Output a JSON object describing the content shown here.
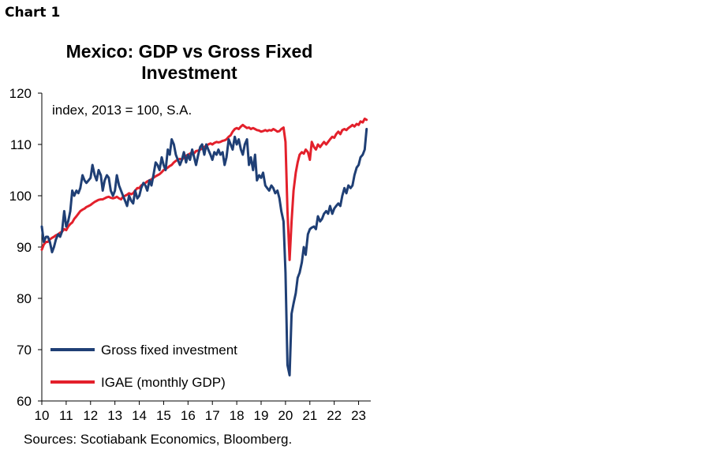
{
  "chart_label": "Chart 1",
  "source": "Sources: Scotiabank Economics, Bloomberg.",
  "chart_data": {
    "type": "line",
    "title": "Mexico: GDP vs Gross Fixed Investment",
    "title_lines": [
      "Mexico: GDP vs Gross Fixed",
      "Investment"
    ],
    "annotation": "index, 2013 = 100, S.A.",
    "xlabel": "",
    "ylabel": "",
    "ylim": [
      60,
      120
    ],
    "yticks": [
      60,
      70,
      80,
      90,
      100,
      110,
      120
    ],
    "xlim": [
      2010,
      2023.5
    ],
    "xticks": [
      2010,
      2011,
      2012,
      2013,
      2014,
      2015,
      2016,
      2017,
      2018,
      2019,
      2020,
      2021,
      2022,
      2023
    ],
    "xtick_labels": [
      "10",
      "11",
      "12",
      "13",
      "14",
      "15",
      "16",
      "17",
      "18",
      "19",
      "20",
      "21",
      "22",
      "23"
    ],
    "grid": false,
    "legend": "bottom-left",
    "series": [
      {
        "name": "Gross fixed investment",
        "color": "#1f3f75",
        "x": [
          2010.0,
          2010.08,
          2010.17,
          2010.25,
          2010.33,
          2010.42,
          2010.5,
          2010.58,
          2010.67,
          2010.75,
          2010.83,
          2010.92,
          2011.0,
          2011.08,
          2011.17,
          2011.25,
          2011.33,
          2011.42,
          2011.5,
          2011.58,
          2011.67,
          2011.75,
          2011.83,
          2011.92,
          2012.0,
          2012.08,
          2012.17,
          2012.25,
          2012.33,
          2012.42,
          2012.5,
          2012.58,
          2012.67,
          2012.75,
          2012.83,
          2012.92,
          2013.0,
          2013.08,
          2013.17,
          2013.25,
          2013.33,
          2013.42,
          2013.5,
          2013.58,
          2013.67,
          2013.75,
          2013.83,
          2013.92,
          2014.0,
          2014.08,
          2014.17,
          2014.25,
          2014.33,
          2014.42,
          2014.5,
          2014.58,
          2014.67,
          2014.75,
          2014.83,
          2014.92,
          2015.0,
          2015.08,
          2015.17,
          2015.25,
          2015.33,
          2015.42,
          2015.5,
          2015.58,
          2015.67,
          2015.75,
          2015.83,
          2015.92,
          2016.0,
          2016.08,
          2016.17,
          2016.25,
          2016.33,
          2016.42,
          2016.5,
          2016.58,
          2016.67,
          2016.75,
          2016.83,
          2016.92,
          2017.0,
          2017.08,
          2017.17,
          2017.25,
          2017.33,
          2017.42,
          2017.5,
          2017.58,
          2017.67,
          2017.75,
          2017.83,
          2017.92,
          2018.0,
          2018.08,
          2018.17,
          2018.25,
          2018.33,
          2018.42,
          2018.5,
          2018.58,
          2018.67,
          2018.75,
          2018.83,
          2018.92,
          2019.0,
          2019.08,
          2019.17,
          2019.25,
          2019.33,
          2019.42,
          2019.5,
          2019.58,
          2019.67,
          2019.75,
          2019.83,
          2019.92,
          2020.0,
          2020.08,
          2020.17,
          2020.25,
          2020.33,
          2020.42,
          2020.5,
          2020.58,
          2020.67,
          2020.75,
          2020.83,
          2020.92,
          2021.0,
          2021.08,
          2021.17,
          2021.25,
          2021.33,
          2021.42,
          2021.5,
          2021.58,
          2021.67,
          2021.75,
          2021.83,
          2021.92,
          2022.0,
          2022.08,
          2022.17,
          2022.25,
          2022.33,
          2022.42,
          2022.5,
          2022.58,
          2022.67,
          2022.75,
          2022.83,
          2022.92,
          2023.0,
          2023.08,
          2023.17,
          2023.25,
          2023.33
        ],
        "values": [
          94.0,
          91.0,
          92.0,
          92.0,
          91.0,
          89.0,
          90.0,
          91.5,
          92.5,
          92.0,
          93.0,
          97.0,
          94.0,
          95.0,
          97.0,
          101.0,
          100.0,
          101.0,
          100.5,
          101.5,
          104.0,
          103.0,
          102.5,
          103.0,
          103.5,
          106.0,
          104.0,
          103.0,
          105.0,
          104.0,
          101.0,
          103.0,
          104.0,
          103.5,
          101.0,
          100.0,
          101.0,
          104.0,
          102.0,
          101.0,
          100.0,
          99.0,
          98.0,
          100.0,
          99.0,
          98.5,
          101.0,
          99.5,
          100.0,
          101.5,
          102.5,
          102.0,
          101.0,
          103.0,
          102.0,
          104.0,
          106.5,
          106.0,
          105.0,
          107.5,
          106.0,
          105.0,
          109.0,
          108.0,
          111.0,
          110.0,
          108.0,
          107.0,
          106.0,
          107.0,
          108.5,
          106.5,
          108.0,
          107.0,
          109.0,
          107.5,
          106.0,
          108.0,
          109.5,
          110.0,
          108.0,
          110.0,
          109.0,
          108.0,
          107.0,
          108.5,
          108.0,
          109.0,
          108.0,
          108.5,
          106.0,
          107.5,
          111.0,
          110.0,
          109.0,
          111.5,
          110.0,
          111.0,
          109.0,
          108.0,
          110.0,
          111.0,
          106.0,
          107.5,
          105.0,
          108.0,
          103.0,
          104.0,
          103.5,
          104.5,
          102.0,
          101.5,
          101.0,
          102.0,
          101.5,
          100.5,
          101.0,
          99.5,
          97.0,
          95.0,
          85.0,
          67.0,
          65.0,
          77.0,
          79.0,
          81.0,
          84.0,
          85.0,
          87.0,
          90.0,
          88.5,
          92.5,
          93.5,
          93.8,
          94.0,
          93.5,
          96.0,
          95.0,
          95.5,
          96.5,
          97.0,
          96.5,
          98.0,
          96.5,
          97.5,
          98.0,
          98.5,
          98.0,
          100.0,
          101.5,
          100.5,
          102.0,
          101.5,
          102.0,
          104.0,
          105.5,
          106.0,
          107.5,
          108.0,
          109.0,
          113.0
        ]
      },
      {
        "name": "IGAE (monthly GDP)",
        "color": "#e3202b",
        "x": [
          2010.0,
          2010.08,
          2010.17,
          2010.25,
          2010.33,
          2010.42,
          2010.5,
          2010.58,
          2010.67,
          2010.75,
          2010.83,
          2010.92,
          2011.0,
          2011.08,
          2011.17,
          2011.25,
          2011.33,
          2011.42,
          2011.5,
          2011.58,
          2011.67,
          2011.75,
          2011.83,
          2011.92,
          2012.0,
          2012.08,
          2012.17,
          2012.25,
          2012.33,
          2012.42,
          2012.5,
          2012.58,
          2012.67,
          2012.75,
          2012.83,
          2012.92,
          2013.0,
          2013.08,
          2013.17,
          2013.25,
          2013.33,
          2013.42,
          2013.5,
          2013.58,
          2013.67,
          2013.75,
          2013.83,
          2013.92,
          2014.0,
          2014.08,
          2014.17,
          2014.25,
          2014.33,
          2014.42,
          2014.5,
          2014.58,
          2014.67,
          2014.75,
          2014.83,
          2014.92,
          2015.0,
          2015.08,
          2015.17,
          2015.25,
          2015.33,
          2015.42,
          2015.5,
          2015.58,
          2015.67,
          2015.75,
          2015.83,
          2015.92,
          2016.0,
          2016.08,
          2016.17,
          2016.25,
          2016.33,
          2016.42,
          2016.5,
          2016.58,
          2016.67,
          2016.75,
          2016.83,
          2016.92,
          2017.0,
          2017.08,
          2017.17,
          2017.25,
          2017.33,
          2017.42,
          2017.5,
          2017.58,
          2017.67,
          2017.75,
          2017.83,
          2017.92,
          2018.0,
          2018.08,
          2018.17,
          2018.25,
          2018.33,
          2018.42,
          2018.5,
          2018.58,
          2018.67,
          2018.75,
          2018.83,
          2018.92,
          2019.0,
          2019.08,
          2019.17,
          2019.25,
          2019.33,
          2019.42,
          2019.5,
          2019.58,
          2019.67,
          2019.75,
          2019.83,
          2019.92,
          2020.0,
          2020.08,
          2020.17,
          2020.25,
          2020.33,
          2020.42,
          2020.5,
          2020.58,
          2020.67,
          2020.75,
          2020.83,
          2020.92,
          2021.0,
          2021.08,
          2021.17,
          2021.25,
          2021.33,
          2021.42,
          2021.5,
          2021.58,
          2021.67,
          2021.75,
          2021.83,
          2021.92,
          2022.0,
          2022.08,
          2022.17,
          2022.25,
          2022.33,
          2022.42,
          2022.5,
          2022.58,
          2022.67,
          2022.75,
          2022.83,
          2022.92,
          2023.0,
          2023.08,
          2023.17,
          2023.25,
          2023.33
        ],
        "values": [
          89.5,
          90.5,
          91.0,
          91.0,
          91.5,
          91.8,
          92.0,
          92.3,
          92.5,
          92.8,
          93.0,
          93.5,
          93.3,
          94.0,
          94.5,
          94.8,
          95.5,
          96.0,
          96.5,
          97.0,
          97.3,
          97.5,
          97.8,
          98.0,
          98.2,
          98.5,
          98.8,
          99.0,
          99.2,
          99.3,
          99.3,
          99.5,
          99.7,
          99.8,
          99.6,
          99.5,
          99.6,
          99.8,
          99.5,
          99.3,
          99.8,
          100.0,
          100.2,
          100.5,
          100.3,
          100.5,
          101.0,
          101.5,
          101.5,
          102.0,
          102.3,
          102.5,
          102.8,
          103.0,
          103.2,
          103.5,
          103.8,
          104.0,
          104.2,
          104.6,
          105.0,
          105.2,
          105.5,
          105.8,
          106.0,
          106.5,
          106.8,
          107.0,
          107.2,
          107.0,
          107.5,
          107.8,
          108.0,
          108.2,
          108.5,
          108.3,
          108.7,
          108.8,
          109.0,
          109.2,
          109.5,
          109.8,
          110.0,
          110.2,
          110.0,
          110.3,
          110.5,
          110.4,
          110.5,
          110.7,
          110.8,
          111.0,
          111.5,
          111.8,
          112.5,
          113.0,
          113.2,
          113.0,
          113.5,
          113.8,
          113.5,
          113.2,
          113.3,
          113.0,
          113.2,
          113.0,
          112.8,
          112.7,
          112.5,
          112.6,
          112.8,
          112.6,
          112.8,
          112.7,
          113.0,
          112.8,
          112.5,
          112.6,
          113.0,
          113.3,
          110.5,
          97.0,
          87.5,
          95.0,
          101.0,
          104.5,
          106.5,
          108.0,
          108.5,
          108.2,
          109.0,
          108.5,
          107.0,
          110.5,
          109.5,
          109.0,
          110.0,
          109.5,
          110.0,
          110.5,
          110.0,
          110.5,
          111.0,
          111.5,
          111.3,
          112.0,
          112.5,
          112.0,
          112.8,
          113.0,
          112.8,
          113.2,
          113.5,
          113.8,
          113.5,
          114.0,
          113.8,
          114.5,
          114.3,
          115.0,
          114.8
        ]
      }
    ]
  }
}
